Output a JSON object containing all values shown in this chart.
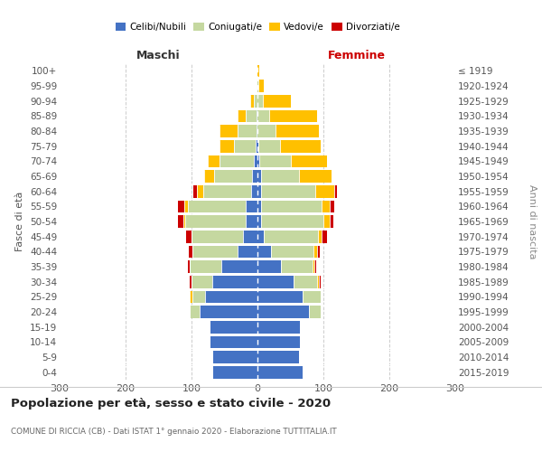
{
  "age_groups": [
    "0-4",
    "5-9",
    "10-14",
    "15-19",
    "20-24",
    "25-29",
    "30-34",
    "35-39",
    "40-44",
    "45-49",
    "50-54",
    "55-59",
    "60-64",
    "65-69",
    "70-74",
    "75-79",
    "80-84",
    "85-89",
    "90-94",
    "95-99",
    "100+"
  ],
  "birth_years": [
    "2015-2019",
    "2010-2014",
    "2005-2009",
    "2000-2004",
    "1995-1999",
    "1990-1994",
    "1985-1989",
    "1980-1984",
    "1975-1979",
    "1970-1974",
    "1965-1969",
    "1960-1964",
    "1955-1959",
    "1950-1954",
    "1945-1949",
    "1940-1944",
    "1935-1939",
    "1930-1934",
    "1925-1929",
    "1920-1924",
    "≤ 1919"
  ],
  "colors": {
    "celibe": "#4472c4",
    "coniugato": "#c5d8a0",
    "vedovo": "#ffc000",
    "divorziato": "#cc0000"
  },
  "male": {
    "celibe": [
      68,
      68,
      73,
      73,
      88,
      80,
      68,
      55,
      30,
      22,
      18,
      18,
      10,
      8,
      5,
      3,
      2,
      2,
      0,
      0,
      0
    ],
    "coniugato": [
      0,
      0,
      0,
      0,
      15,
      18,
      32,
      48,
      68,
      78,
      92,
      88,
      72,
      58,
      52,
      32,
      28,
      16,
      6,
      2,
      0
    ],
    "vedovo": [
      0,
      0,
      0,
      0,
      0,
      5,
      0,
      0,
      0,
      0,
      3,
      5,
      10,
      15,
      18,
      22,
      28,
      12,
      5,
      0,
      0
    ],
    "divorziato": [
      0,
      0,
      0,
      0,
      0,
      0,
      3,
      3,
      6,
      8,
      8,
      10,
      5,
      0,
      0,
      0,
      0,
      0,
      0,
      0,
      0
    ]
  },
  "female": {
    "nubile": [
      68,
      63,
      65,
      65,
      78,
      68,
      55,
      35,
      20,
      10,
      5,
      5,
      5,
      5,
      3,
      2,
      0,
      0,
      0,
      0,
      0
    ],
    "coniugata": [
      0,
      0,
      0,
      0,
      18,
      28,
      35,
      48,
      65,
      82,
      95,
      92,
      82,
      58,
      48,
      32,
      28,
      18,
      8,
      2,
      0
    ],
    "vedova": [
      0,
      0,
      0,
      0,
      0,
      0,
      3,
      3,
      5,
      5,
      10,
      12,
      30,
      50,
      55,
      62,
      65,
      72,
      42,
      8,
      3
    ],
    "divorziata": [
      0,
      0,
      0,
      0,
      0,
      0,
      3,
      3,
      5,
      8,
      5,
      8,
      3,
      0,
      0,
      0,
      0,
      0,
      0,
      0,
      0
    ]
  },
  "title": "Popolazione per età, sesso e stato civile - 2020",
  "subtitle": "COMUNE DI RICCIA (CB) - Dati ISTAT 1° gennaio 2020 - Elaborazione TUTTITALIA.IT",
  "xlim": 300,
  "legend_labels": [
    "Celibi/Nubili",
    "Coniugati/e",
    "Vedovi/e",
    "Divorziati/e"
  ],
  "left_label": "Maschi",
  "right_label": "Femmine",
  "ylabel": "Fasce di età",
  "right_ylabel": "Anni di nascita",
  "background_color": "#ffffff",
  "grid_color": "#cccccc"
}
